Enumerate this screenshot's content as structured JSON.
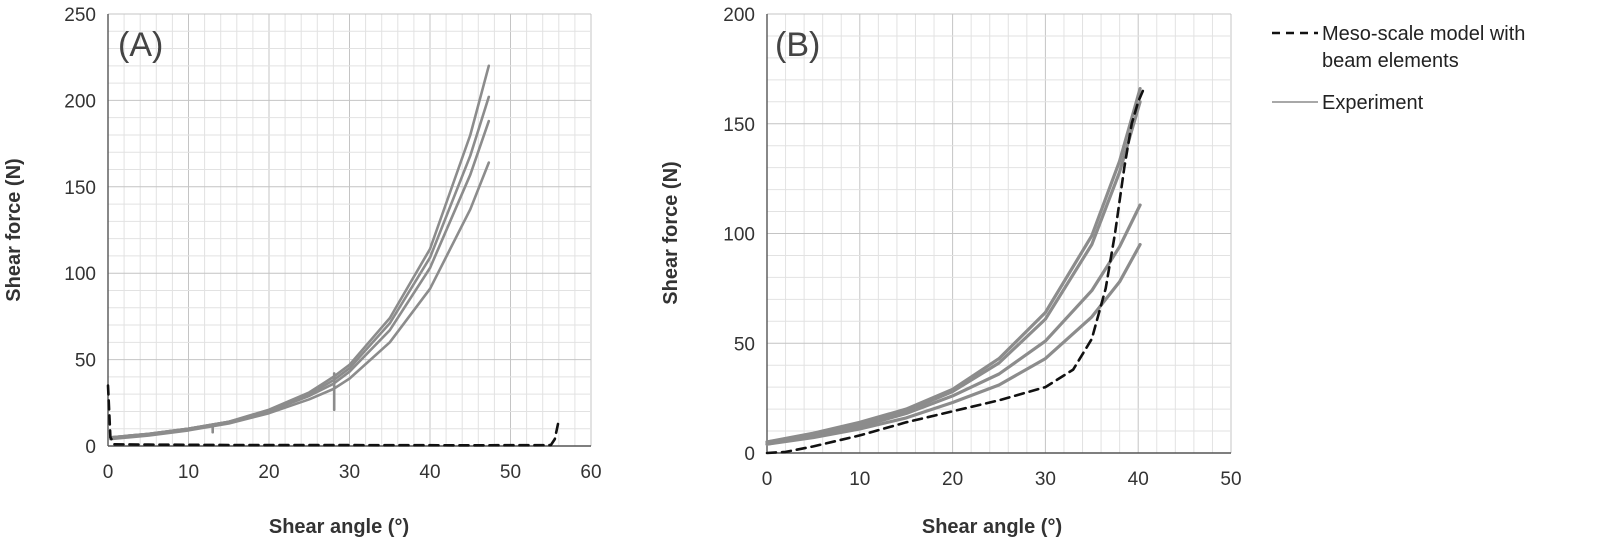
{
  "legend": {
    "items": [
      {
        "label_lines": [
          "Meso-scale model with",
          "beam elements"
        ],
        "style": "dashed",
        "color": "#111111"
      },
      {
        "label_lines": [
          "Experiment"
        ],
        "style": "solid",
        "color": "#8c8c8c"
      }
    ]
  },
  "colors": {
    "experiment": "#8c8c8c",
    "model": "#111111",
    "grid_minor": "#e2e2e2",
    "grid_major": "#c4c4c4"
  },
  "chart_data": [
    {
      "panel_label": "(A)",
      "type": "line",
      "xlabel": "Shear angle (°)",
      "ylabel": "Shear force (N)",
      "xlim": [
        0,
        60
      ],
      "ylim": [
        0,
        250
      ],
      "xticks": [
        0,
        10,
        20,
        30,
        40,
        50,
        60
      ],
      "yticks": [
        0,
        50,
        100,
        150,
        200,
        250
      ],
      "grid": true,
      "series": [
        {
          "style": "solid",
          "x": [
            0.3,
            5,
            10,
            15,
            20,
            25,
            28,
            30,
            35,
            40,
            45,
            47.3
          ],
          "y": [
            5,
            7,
            10,
            14,
            21,
            31,
            40,
            47,
            74,
            114,
            180,
            220
          ]
        },
        {
          "style": "solid",
          "x": [
            0.3,
            5,
            10,
            15,
            20,
            25,
            28,
            30,
            35,
            40,
            45,
            47.3
          ],
          "y": [
            5,
            7,
            10,
            14,
            20,
            30,
            38,
            45,
            71,
            109,
            168,
            202
          ]
        },
        {
          "style": "solid",
          "x": [
            0.3,
            5,
            10,
            15,
            20,
            25,
            28,
            30,
            35,
            40,
            45,
            47.3
          ],
          "y": [
            5,
            7,
            10,
            14,
            20,
            29,
            36,
            43,
            67,
            103,
            157,
            188
          ]
        },
        {
          "style": "solid",
          "x": [
            0.3,
            5,
            10,
            15,
            20,
            25,
            28,
            30,
            35,
            40,
            45,
            47.3
          ],
          "y": [
            4,
            6,
            9,
            13,
            19,
            27,
            33,
            39,
            60,
            91,
            137,
            164
          ]
        },
        {
          "style": "solid",
          "x": [
            28.1,
            28.1
          ],
          "y": [
            21,
            42
          ]
        },
        {
          "style": "solid",
          "x": [
            13,
            13
          ],
          "y": [
            8,
            12
          ]
        },
        {
          "style": "dashed",
          "x": [
            0,
            0.3,
            0.8,
            5,
            15,
            30,
            45,
            55,
            55.5,
            56
          ],
          "y": [
            35,
            5,
            1,
            0.8,
            0.6,
            0.5,
            0.4,
            0.5,
            4,
            15
          ]
        }
      ]
    },
    {
      "panel_label": "(B)",
      "type": "line",
      "xlabel": "Shear angle (°)",
      "ylabel": "Shear force (N)",
      "xlim": [
        0,
        50
      ],
      "ylim": [
        0,
        200
      ],
      "xticks": [
        0,
        10,
        20,
        30,
        40,
        50
      ],
      "yticks": [
        0,
        50,
        100,
        150,
        200
      ],
      "grid": true,
      "series": [
        {
          "style": "solid",
          "x": [
            0,
            5,
            10,
            15,
            20,
            25,
            30,
            35,
            38,
            40.2
          ],
          "y": [
            5,
            9,
            14,
            20,
            29,
            43,
            64,
            99,
            133,
            166
          ]
        },
        {
          "style": "solid",
          "x": [
            0,
            5,
            10,
            15,
            20,
            25,
            30,
            35,
            38,
            40.2
          ],
          "y": [
            5,
            8,
            13,
            19,
            28,
            41,
            61,
            95,
            128,
            160
          ]
        },
        {
          "style": "solid",
          "x": [
            0,
            5,
            10,
            15,
            20,
            25,
            30,
            35,
            38,
            40.2
          ],
          "y": [
            4,
            8,
            12,
            18,
            26,
            36,
            51,
            74,
            94,
            113
          ]
        },
        {
          "style": "solid",
          "x": [
            0,
            5,
            10,
            15,
            20,
            25,
            30,
            35,
            38,
            40.2
          ],
          "y": [
            4,
            7,
            11,
            16,
            23,
            31,
            43,
            62,
            78,
            95
          ]
        },
        {
          "style": "dashed",
          "x": [
            0,
            2,
            5,
            10,
            15,
            20,
            25,
            30,
            33,
            35,
            36.5,
            37.5,
            38.5,
            39.3,
            40,
            40.6
          ],
          "y": [
            0,
            0.5,
            3,
            8,
            14,
            19,
            24,
            30,
            38,
            52,
            75,
            100,
            130,
            150,
            160,
            166
          ]
        }
      ]
    }
  ]
}
